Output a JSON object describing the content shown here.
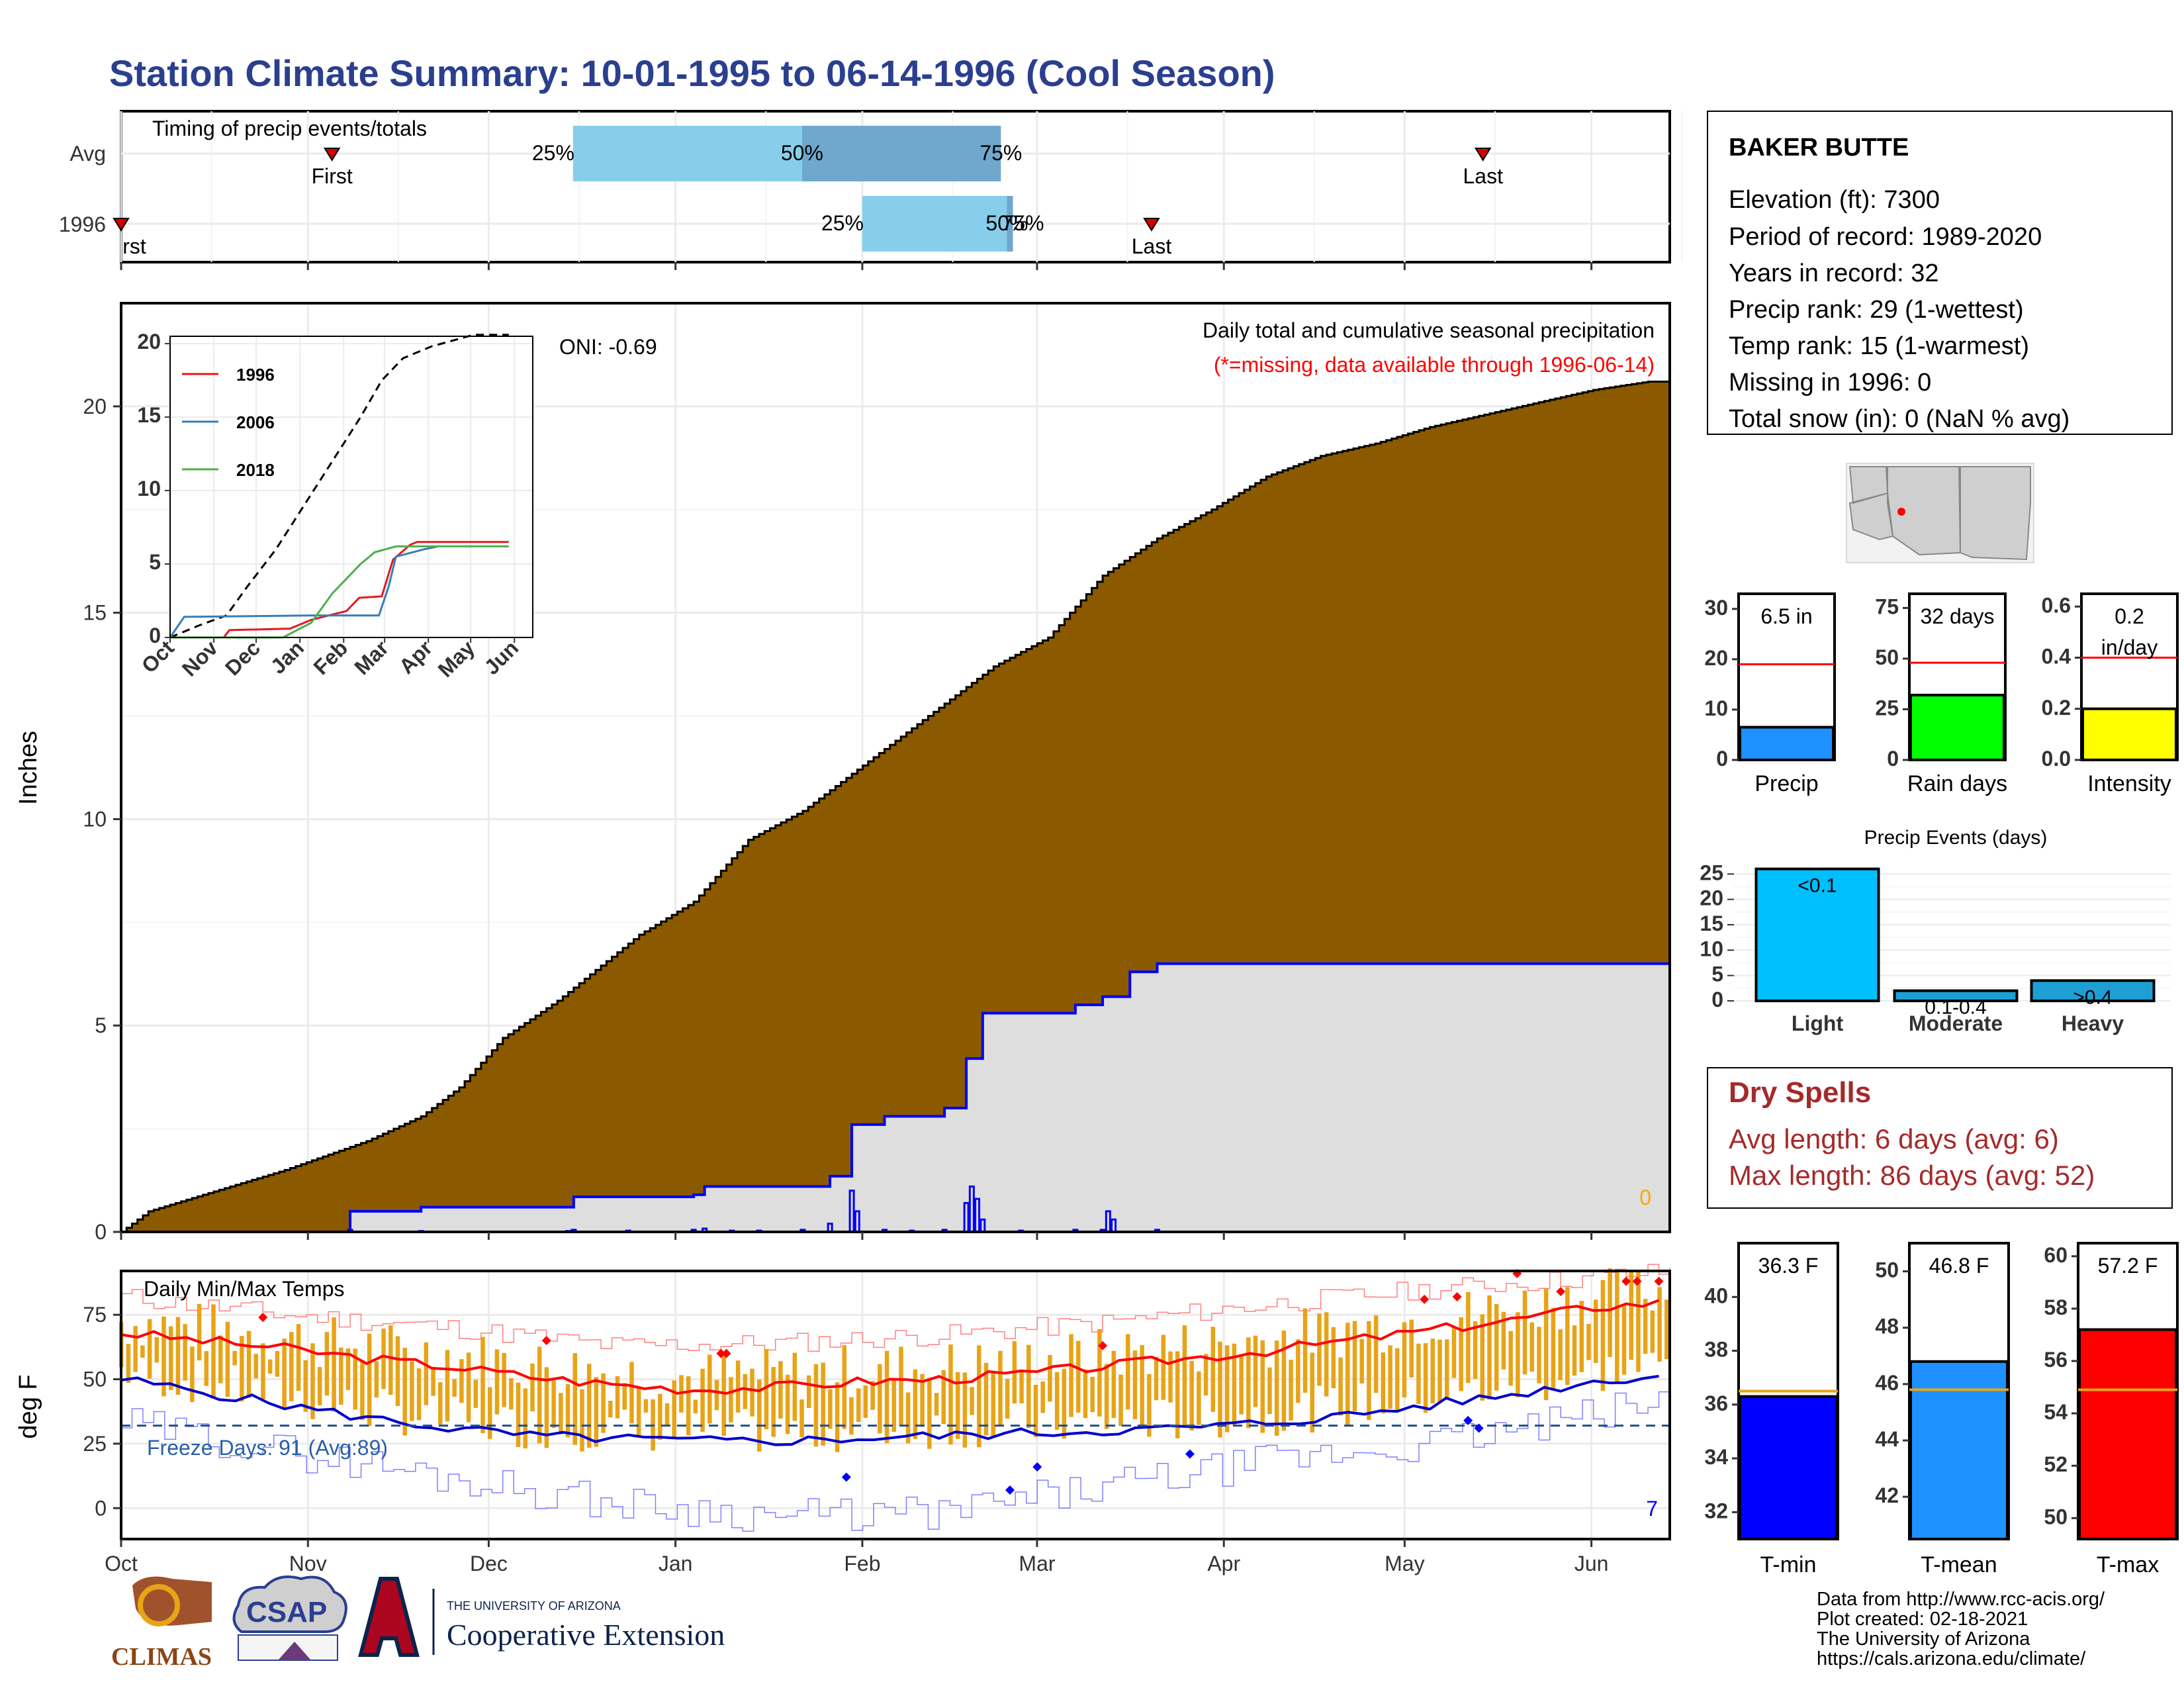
{
  "title": "Station Climate Summary: 10-01-1995 to 06-14-1996 (Cool Season)",
  "station": {
    "name": "BAKER BUTTE",
    "lines": [
      "Elevation (ft): 7300",
      "Period of record: 1989-2020",
      "Years in record: 32",
      "Precip rank: 29 (1-wettest)",
      "Temp rank: 15 (1-warmest)",
      "Missing in 1996: 0",
      "Total snow (in): 0 (NaN % avg)"
    ]
  },
  "dry_spells": {
    "title": "Dry Spells",
    "avg": "Avg length: 6 days (avg: 6)",
    "max": "Max length: 86 days (avg: 52)"
  },
  "credits": [
    "Data from http://www.rcc-acis.org/",
    "Plot created: 02-18-2021",
    "The University of Arizona",
    "https://cals.arizona.edu/climate/"
  ],
  "logos": {
    "climas": "CLIMAS",
    "csap": "CSAP",
    "ua_small": "THE UNIVERSITY OF ARIZONA",
    "ua_big": "Cooperative Extension"
  },
  "colors": {
    "title": "#2a3f8f",
    "cumulative_avg": "#8b5a00",
    "cumulative_1996": "#dedede",
    "precip_line": "#0000ff",
    "light_blue": "#87ceeb",
    "steel_blue": "#6fa8cc",
    "tmin": "#0000ff",
    "tmean": "#1e90ff",
    "tmax": "#ff0000",
    "orange_bars": "#e8a317",
    "dry_spell": "#a52a2a"
  },
  "chart_data": [
    {
      "id": "timing",
      "type": "bar",
      "title": "Timing of precip events/totals",
      "x_axis": [
        "Oct",
        "Nov",
        "Dec",
        "Jan",
        "Feb",
        "Mar",
        "Apr",
        "May",
        "Jun"
      ],
      "rows": [
        {
          "name": "Avg",
          "first": "1995-11-05",
          "last": "1996-05-14",
          "p25": "1995-12-15",
          "p50": "1996-01-22",
          "p75": "1996-02-24",
          "labels": {
            "first": "First",
            "last": "Last",
            "p25": "25%",
            "p50": "50%",
            "p75": "75%"
          }
        },
        {
          "name": "1996",
          "first": "1995-10-01",
          "last": "1996-03-20",
          "p25": "1996-02-01",
          "p50": "1996-02-25",
          "p75": "1996-02-26",
          "labels": {
            "first": "rst",
            "last": "Last",
            "p25": "25%",
            "p50": "50%",
            "p75": "75%"
          }
        }
      ]
    },
    {
      "id": "cumulative",
      "type": "area",
      "title": "Daily total and cumulative seasonal precipitation",
      "subtitle": "(*=missing, data available through 1996-06-14)",
      "ylabel": "Inches",
      "ylim": [
        0,
        22.5
      ],
      "yticks": [
        0,
        5,
        10,
        15,
        20
      ],
      "x_axis": [
        "Oct",
        "Nov",
        "Dec",
        "Jan",
        "Feb",
        "Mar",
        "Apr",
        "May",
        "Jun"
      ],
      "oni": "ONI: -0.69",
      "corner_value": "0",
      "avg_cumulative": [
        [
          0,
          0
        ],
        [
          5,
          0.5
        ],
        [
          15,
          0.9
        ],
        [
          30,
          1.5
        ],
        [
          45,
          2.2
        ],
        [
          55,
          2.8
        ],
        [
          62,
          3.5
        ],
        [
          70,
          4.7
        ],
        [
          80,
          5.6
        ],
        [
          95,
          7.2
        ],
        [
          105,
          8.0
        ],
        [
          115,
          9.5
        ],
        [
          125,
          10.2
        ],
        [
          140,
          11.7
        ],
        [
          150,
          12.7
        ],
        [
          160,
          13.7
        ],
        [
          170,
          14.4
        ],
        [
          180,
          15.9
        ],
        [
          190,
          16.8
        ],
        [
          200,
          17.5
        ],
        [
          210,
          18.3
        ],
        [
          220,
          18.8
        ],
        [
          230,
          19.1
        ],
        [
          240,
          19.5
        ],
        [
          250,
          19.8
        ],
        [
          260,
          20.1
        ],
        [
          270,
          20.4
        ],
        [
          280,
          20.6
        ],
        [
          284,
          20.6
        ]
      ],
      "series_1996_cumulative": [
        [
          0,
          0
        ],
        [
          38,
          0
        ],
        [
          42,
          0.5
        ],
        [
          55,
          0.6
        ],
        [
          82,
          0.6
        ],
        [
          83,
          0.85
        ],
        [
          105,
          0.9
        ],
        [
          107,
          1.1
        ],
        [
          125,
          1.1
        ],
        [
          130,
          1.35
        ],
        [
          134,
          2.6
        ],
        [
          140,
          2.8
        ],
        [
          149,
          2.8
        ],
        [
          151,
          3.0
        ],
        [
          155,
          4.2
        ],
        [
          158,
          5.3
        ],
        [
          175,
          5.5
        ],
        [
          180,
          5.7
        ],
        [
          185,
          6.3
        ],
        [
          190,
          6.5
        ],
        [
          284,
          6.5
        ]
      ],
      "series_1996_daily": [
        [
          42,
          0.05
        ],
        [
          55,
          0.02
        ],
        [
          82,
          0.02
        ],
        [
          83,
          0.05
        ],
        [
          93,
          0.03
        ],
        [
          105,
          0.05
        ],
        [
          107,
          0.08
        ],
        [
          112,
          0.03
        ],
        [
          117,
          0.03
        ],
        [
          125,
          0.05
        ],
        [
          130,
          0.2
        ],
        [
          134,
          1.0
        ],
        [
          135,
          0.5
        ],
        [
          140,
          0.05
        ],
        [
          145,
          0.03
        ],
        [
          151,
          0.05
        ],
        [
          155,
          0.7
        ],
        [
          156,
          1.1
        ],
        [
          157,
          0.8
        ],
        [
          158,
          0.3
        ],
        [
          165,
          0.03
        ],
        [
          175,
          0.05
        ],
        [
          180,
          0.05
        ],
        [
          181,
          0.5
        ],
        [
          182,
          0.3
        ],
        [
          190,
          0.05
        ]
      ]
    },
    {
      "id": "inset",
      "type": "line",
      "x_axis": [
        "Oct",
        "Nov",
        "Dec",
        "Jan",
        "Feb",
        "Mar",
        "Apr",
        "May",
        "Jun"
      ],
      "ylim": [
        0,
        20.5
      ],
      "yticks": [
        0,
        5,
        10,
        15,
        20
      ],
      "legend": [
        "1996",
        "2006",
        "2018"
      ],
      "series": [
        {
          "name": "avg",
          "points": [
            [
              0,
              0
            ],
            [
              20,
              0.8
            ],
            [
              40,
              1.5
            ],
            [
              55,
              3.5
            ],
            [
              75,
              6
            ],
            [
              95,
              9
            ],
            [
              115,
              12
            ],
            [
              135,
              15
            ],
            [
              150,
              17.5
            ],
            [
              165,
              19
            ],
            [
              185,
              19.8
            ],
            [
              215,
              20.6
            ],
            [
              240,
              20.6
            ]
          ]
        },
        {
          "name": "1996",
          "points": [
            [
              0,
              0
            ],
            [
              38,
              0
            ],
            [
              42,
              0.5
            ],
            [
              85,
              0.6
            ],
            [
              100,
              1.2
            ],
            [
              125,
              1.8
            ],
            [
              134,
              2.7
            ],
            [
              150,
              2.8
            ],
            [
              158,
              5.3
            ],
            [
              170,
              6.3
            ],
            [
              175,
              6.5
            ],
            [
              240,
              6.5
            ]
          ]
        },
        {
          "name": "2006",
          "points": [
            [
              0,
              0
            ],
            [
              10,
              1.4
            ],
            [
              100,
              1.5
            ],
            [
              148,
              1.5
            ],
            [
              155,
              3.5
            ],
            [
              160,
              5.5
            ],
            [
              180,
              6.0
            ],
            [
              190,
              6.2
            ]
          ]
        },
        {
          "name": "2018",
          "points": [
            [
              0,
              0
            ],
            [
              80,
              0
            ],
            [
              100,
              1.0
            ],
            [
              115,
              3.0
            ],
            [
              125,
              4.0
            ],
            [
              135,
              5.0
            ],
            [
              145,
              5.8
            ],
            [
              160,
              6.2
            ],
            [
              240,
              6.2
            ]
          ]
        }
      ]
    },
    {
      "id": "temps",
      "type": "line",
      "title": "Daily Min/Max Temps",
      "ylabel": "deg F",
      "ylim": [
        -12,
        92
      ],
      "yticks": [
        0,
        25,
        50,
        75
      ],
      "x_axis": [
        "Oct",
        "Nov",
        "Dec",
        "Jan",
        "Feb",
        "Mar",
        "Apr",
        "May",
        "Jun"
      ],
      "freeze_label": "Freeze Days: 91 (Avg:89)",
      "freeze_line": 32,
      "corner_value": "7",
      "avg_max": [
        [
          0,
          68
        ],
        [
          15,
          65
        ],
        [
          30,
          62
        ],
        [
          45,
          58
        ],
        [
          60,
          55
        ],
        [
          75,
          51
        ],
        [
          90,
          48
        ],
        [
          105,
          46
        ],
        [
          120,
          47
        ],
        [
          135,
          49
        ],
        [
          150,
          50
        ],
        [
          165,
          52
        ],
        [
          180,
          55
        ],
        [
          195,
          58
        ],
        [
          210,
          61
        ],
        [
          225,
          65
        ],
        [
          240,
          69
        ],
        [
          255,
          73
        ],
        [
          270,
          78
        ],
        [
          284,
          80
        ]
      ],
      "avg_min": [
        [
          0,
          50
        ],
        [
          15,
          45
        ],
        [
          30,
          40
        ],
        [
          45,
          35
        ],
        [
          60,
          31
        ],
        [
          75,
          28
        ],
        [
          90,
          27
        ],
        [
          105,
          26
        ],
        [
          120,
          26
        ],
        [
          135,
          27
        ],
        [
          150,
          28
        ],
        [
          165,
          29
        ],
        [
          180,
          30
        ],
        [
          195,
          31
        ],
        [
          210,
          33
        ],
        [
          225,
          36
        ],
        [
          240,
          40
        ],
        [
          255,
          44
        ],
        [
          270,
          49
        ],
        [
          284,
          52
        ]
      ],
      "record_high": [
        [
          0,
          82
        ],
        [
          30,
          75
        ],
        [
          60,
          70
        ],
        [
          90,
          63
        ],
        [
          120,
          64
        ],
        [
          150,
          67
        ],
        [
          180,
          72
        ],
        [
          210,
          79
        ],
        [
          240,
          85
        ],
        [
          260,
          88
        ],
        [
          284,
          92
        ]
      ],
      "record_low": [
        [
          0,
          33
        ],
        [
          30,
          22
        ],
        [
          60,
          12
        ],
        [
          90,
          2
        ],
        [
          120,
          -3
        ],
        [
          150,
          -2
        ],
        [
          180,
          8
        ],
        [
          210,
          18
        ],
        [
          240,
          25
        ],
        [
          260,
          32
        ],
        [
          284,
          42
        ]
      ]
    },
    {
      "id": "season_precip",
      "type": "bar",
      "title": "",
      "categories": [
        "Precip",
        "Rain days",
        "Intensity"
      ],
      "panels": [
        {
          "label": "Precip",
          "value": 6.5,
          "avg": 19,
          "ylim": [
            0,
            33
          ],
          "yticks": [
            0,
            10,
            20,
            30
          ],
          "bar_label": [
            "6.5 in"
          ],
          "color": "#1e90ff"
        },
        {
          "label": "Rain days",
          "value": 32,
          "avg": 48,
          "ylim": [
            0,
            82
          ],
          "yticks": [
            0,
            25,
            50,
            75
          ],
          "bar_label": [
            "32 days"
          ],
          "color": "#00ff00"
        },
        {
          "label": "Intensity",
          "value": 0.2,
          "avg": 0.4,
          "ylim": [
            0,
            0.65
          ],
          "yticks": [
            0.0,
            0.2,
            0.4,
            0.6
          ],
          "bar_label": [
            "0.2",
            "in/day"
          ],
          "color": "#ffff00"
        }
      ]
    },
    {
      "id": "precip_events",
      "type": "bar",
      "title": "Precip Events (days)",
      "categories": [
        "Light",
        "Moderate",
        "Heavy"
      ],
      "values": [
        26,
        2,
        4
      ],
      "bar_labels": [
        "<0.1",
        "0.1-0.4",
        ">0.4"
      ],
      "ylim": [
        0,
        27
      ],
      "yticks": [
        0,
        5,
        10,
        15,
        20,
        25
      ]
    },
    {
      "id": "temp_summary",
      "type": "bar",
      "categories": [
        "T-min",
        "T-mean",
        "T-max"
      ],
      "panels": [
        {
          "label": "T-min",
          "value": 36.3,
          "avg": 36.5,
          "ylim": [
            31,
            42
          ],
          "yticks": [
            32,
            34,
            36,
            38,
            40
          ],
          "bar_label": "36.3 F",
          "color": "#0000ff"
        },
        {
          "label": "T-mean",
          "value": 46.8,
          "avg": 45.8,
          "ylim": [
            40.5,
            51
          ],
          "yticks": [
            42,
            44,
            46,
            48,
            50
          ],
          "bar_label": "46.8 F",
          "color": "#1e90ff"
        },
        {
          "label": "T-max",
          "value": 57.2,
          "avg": 54.9,
          "ylim": [
            49.2,
            60.5
          ],
          "yticks": [
            50,
            52,
            54,
            56,
            58,
            60
          ],
          "bar_label": "57.2 F",
          "color": "#ff0000"
        }
      ]
    }
  ]
}
